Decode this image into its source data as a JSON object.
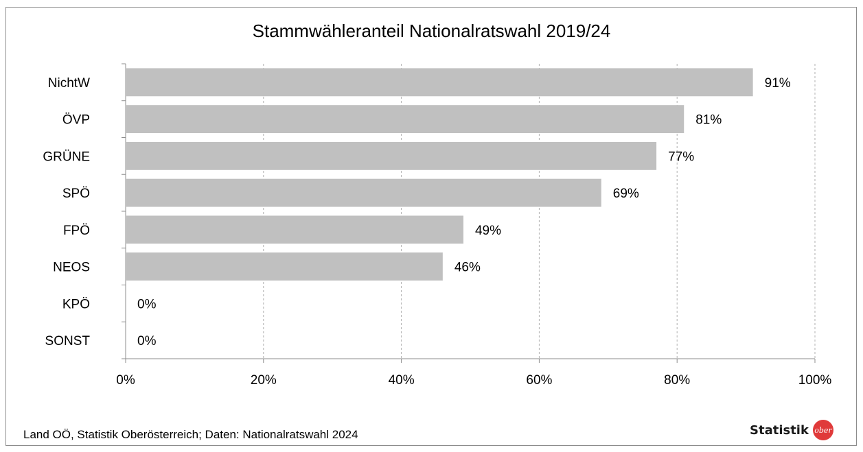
{
  "chart_data": {
    "type": "bar",
    "orientation": "horizontal",
    "title": "Stammwähleranteil Nationalratswahl 2019/24",
    "categories": [
      "NichtW",
      "ÖVP",
      "GRÜNE",
      "SPÖ",
      "FPÖ",
      "NEOS",
      "KPÖ",
      "SONST"
    ],
    "values": [
      91,
      81,
      77,
      69,
      49,
      46,
      0,
      0
    ],
    "value_labels": [
      "91%",
      "81%",
      "77%",
      "69%",
      "49%",
      "46%",
      "0%",
      "0%"
    ],
    "xlim": [
      0,
      100
    ],
    "x_ticks": [
      "0%",
      "20%",
      "40%",
      "60%",
      "80%",
      "100%"
    ],
    "x_tick_values": [
      0,
      20,
      40,
      60,
      80,
      100
    ],
    "xlabel": "",
    "ylabel": "",
    "grid": "vertical dashed",
    "legend": "none",
    "bar_color": "#c0c0c0",
    "grid_color": "#b0b0b0"
  },
  "footer": {
    "source": "Land OÖ, Statistik Oberösterreich; Daten: Nationalratswahl 2024",
    "brand_name": "Statistik",
    "brand_seal_text": "ober"
  }
}
